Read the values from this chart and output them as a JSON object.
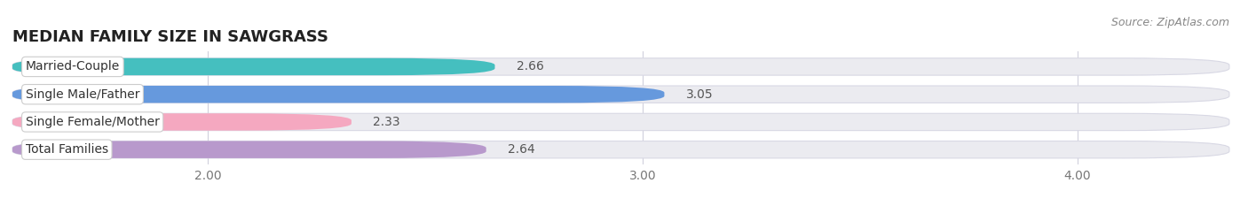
{
  "title": "MEDIAN FAMILY SIZE IN SAWGRASS",
  "source": "Source: ZipAtlas.com",
  "categories": [
    "Married-Couple",
    "Single Male/Father",
    "Single Female/Mother",
    "Total Families"
  ],
  "values": [
    2.66,
    3.05,
    2.33,
    2.64
  ],
  "bar_colors": [
    "#45bfbf",
    "#6699dd",
    "#f5a8c0",
    "#b899cc"
  ],
  "xlim_left": 1.55,
  "xlim_right": 4.35,
  "xticks": [
    2.0,
    3.0,
    4.0
  ],
  "xtick_labels": [
    "2.00",
    "3.00",
    "4.00"
  ],
  "bar_height": 0.62,
  "background_color": "#ffffff",
  "bar_bg_color": "#ebebf0",
  "title_fontsize": 13,
  "label_fontsize": 10,
  "value_fontsize": 10,
  "tick_fontsize": 10,
  "source_fontsize": 9
}
